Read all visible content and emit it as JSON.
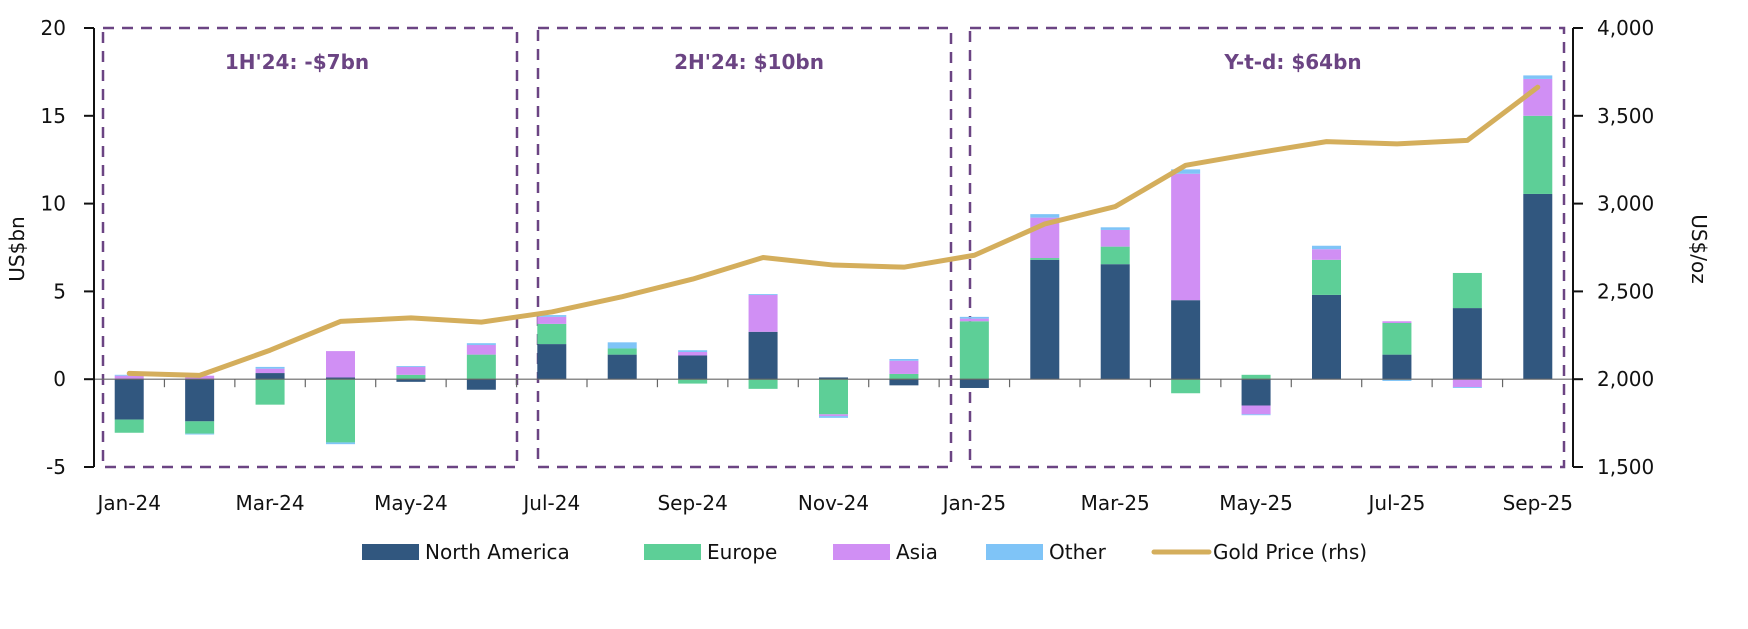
{
  "chart_data": {
    "type": "bar",
    "stacked": true,
    "categories": [
      "Jan-24",
      "Feb-24",
      "Mar-24",
      "Apr-24",
      "May-24",
      "Jun-24",
      "Jul-24",
      "Aug-24",
      "Sep-24",
      "Oct-24",
      "Nov-24",
      "Dec-24",
      "Jan-25",
      "Feb-25",
      "Mar-25",
      "Apr-25",
      "May-25",
      "Jun-25",
      "Jul-25",
      "Aug-25",
      "Sep-25"
    ],
    "x_tick_labels": [
      "Jan-24",
      "Mar-24",
      "May-24",
      "Jul-24",
      "Sep-24",
      "Nov-24",
      "Jan-25",
      "Mar-25",
      "May-25",
      "Jul-25",
      "Sep-25"
    ],
    "ylabel": "US$bn",
    "ylim": [
      -5,
      20
    ],
    "y_ticks": [
      "-5",
      "0",
      "5",
      "10",
      "15",
      "20"
    ],
    "y2label": "US$/oz",
    "y2lim": [
      1500,
      4000
    ],
    "y2_ticks": [
      "1,500",
      "2,000",
      "2,500",
      "3,000",
      "3,500",
      "4,000"
    ],
    "grid": false,
    "legend_position": "bottom",
    "series": [
      {
        "name": "North America",
        "color": "#31577f",
        "values": [
          -2.3,
          -2.4,
          0.35,
          0.1,
          -0.15,
          -0.6,
          2.0,
          1.4,
          1.35,
          2.7,
          0.1,
          -0.35,
          -0.5,
          6.8,
          6.55,
          4.5,
          -1.5,
          4.8,
          1.4,
          4.05,
          10.55
        ]
      },
      {
        "name": "Europe",
        "color": "#5dcf97",
        "values": [
          -0.75,
          -0.7,
          -1.45,
          -3.6,
          0.25,
          1.4,
          1.15,
          0.35,
          -0.25,
          -0.55,
          -2.0,
          0.3,
          3.3,
          0.1,
          1.0,
          -0.8,
          0.25,
          2.0,
          1.8,
          2.0,
          4.45
        ]
      },
      {
        "name": "Asia",
        "color": "#d08ff4",
        "values": [
          0.2,
          0.2,
          0.25,
          1.5,
          0.45,
          0.55,
          0.4,
          0.0,
          0.2,
          2.1,
          -0.1,
          0.75,
          0.15,
          2.3,
          0.95,
          7.2,
          -0.5,
          0.6,
          0.1,
          -0.45,
          2.1
        ]
      },
      {
        "name": "Other",
        "color": "#7fc4f7",
        "values": [
          0.05,
          -0.05,
          0.1,
          -0.1,
          0.05,
          0.1,
          0.1,
          0.35,
          0.1,
          0.05,
          -0.1,
          0.1,
          0.1,
          0.2,
          0.15,
          0.25,
          -0.05,
          0.2,
          -0.1,
          -0.05,
          0.2
        ]
      }
    ],
    "line_series": {
      "name": "Gold Price (rhs)",
      "color": "#d4ae5c",
      "axis": "right",
      "values": [
        2033,
        2022,
        2165,
        2329,
        2349,
        2325,
        2383,
        2470,
        2570,
        2693,
        2650,
        2638,
        2706,
        2884,
        2983,
        3218,
        3288,
        3353,
        3340,
        3360,
        3663
      ]
    },
    "annotations": [
      {
        "text": "1H'24: -$7bn",
        "span": [
          "Jan-24",
          "Jun-24"
        ]
      },
      {
        "text": "2H'24: $10bn",
        "span": [
          "Jul-24",
          "Dec-24"
        ]
      },
      {
        "text": "Y-t-d: $64bn",
        "span": [
          "Jan-25",
          "Sep-25"
        ]
      }
    ],
    "annotation_color": "#6b4483"
  }
}
